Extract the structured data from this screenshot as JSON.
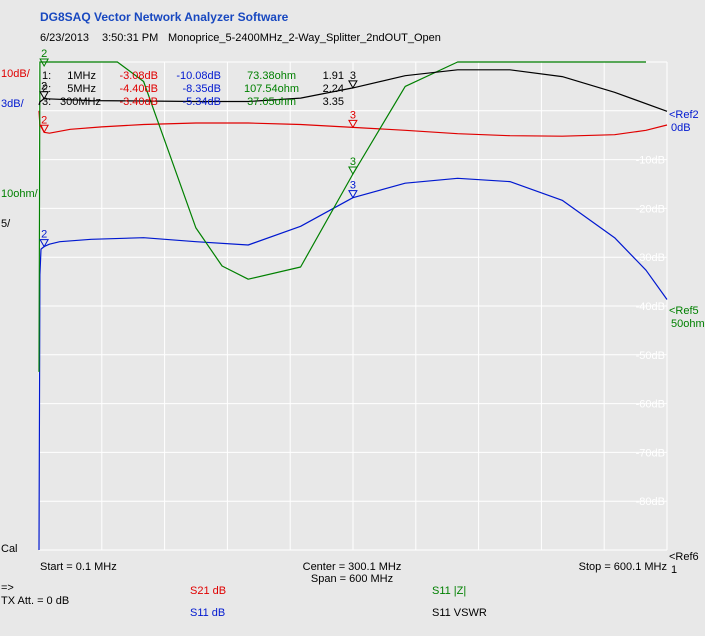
{
  "app": {
    "title": "DG8SAQ Vector Network Analyzer Software",
    "date": "6/23/2013",
    "time": "3:50:31 PM",
    "file": "Monoprice_5-2400MHz_2-Way_Splitter_2ndOUT_Open"
  },
  "colors": {
    "background": "#e8e8e8",
    "grid": "#ffffff",
    "title": "#1848c0",
    "s21": "#e00000",
    "s11_db": "#0018d0",
    "s11_z": "#008000",
    "s11_vswr": "#000000"
  },
  "scales": {
    "s21": "10dB/",
    "s11_db": "3dB/",
    "s11_z": "10ohm/",
    "s11_vswr": "5/"
  },
  "markers": [
    {
      "id": "1:",
      "freq": "1MHz",
      "s21": "-3.08dB",
      "s11": "-10.08dB",
      "z": "73.38ohm",
      "vswr": "1.91"
    },
    {
      "id": "2:",
      "freq": "5MHz",
      "s21": "-4.40dB",
      "s11": "-8.35dB",
      "z": "107.54ohm",
      "vswr": "2.24"
    },
    {
      "id": "3:",
      "freq": "300MHz",
      "s21": "-3.40dB",
      "s11": "-5.34dB",
      "z": "37.05ohm",
      "vswr": "3.35"
    }
  ],
  "right_labels": {
    "ref2": "<Ref2",
    "ref2_value": "0dB",
    "ref5": "<Ref5",
    "ref5_value": "50ohm",
    "ref6": "<Ref6",
    "ref6_num": "1"
  },
  "cal_label": "Cal",
  "footer": {
    "start": "Start = 0.1 MHz",
    "center": "Center = 300.1 MHz",
    "span": "Span = 600 MHz",
    "stop": "Stop = 600.1 MHz",
    "arrow": "=>",
    "tx_att": "TX Att.  = 0 dB"
  },
  "legend": {
    "s21": "S21  dB",
    "s11_db": "S11  dB",
    "s11_z": "S11  |Z|",
    "s11_vswr": "S11  VSWR"
  },
  "chart_data": {
    "type": "line",
    "x_axis": {
      "start_mhz": 0.1,
      "stop_mhz": 600.1,
      "center_mhz": 300.1,
      "span_mhz": 600,
      "divisions": 10
    },
    "y_axis": {
      "divisions": 10,
      "ref_division": 1,
      "tick_labels": [
        "-10dB",
        "-20dB",
        "-30dB",
        "-40dB",
        "-50dB",
        "-60dB",
        "-70dB",
        "-80dB"
      ]
    },
    "marker_freqs_mhz": [
      1,
      5,
      300
    ],
    "series": [
      {
        "key": "s21",
        "ref": 0,
        "per_div": 10,
        "x": [
          0.1,
          1,
          2,
          5,
          10,
          30,
          60,
          100,
          150,
          200,
          250,
          300,
          350,
          400,
          450,
          500,
          550,
          580,
          600.1
        ],
        "y": [
          0,
          -3.08,
          -3.0,
          -4.4,
          -4.6,
          -3.8,
          -3.3,
          -2.8,
          -2.5,
          -2.5,
          -2.8,
          -3.4,
          -4.0,
          -4.7,
          -5.1,
          -5.2,
          -4.9,
          -4.0,
          -2.9
        ]
      },
      {
        "key": "s11_db",
        "ref": 0,
        "per_div": 3,
        "x": [
          0.1,
          1,
          2,
          5,
          10,
          20,
          50,
          100,
          150,
          200,
          250,
          300,
          350,
          400,
          450,
          500,
          550,
          580,
          600.1
        ],
        "y": [
          -47,
          -10.08,
          -8.5,
          -8.35,
          -8.2,
          -8.05,
          -7.9,
          -7.8,
          -8.05,
          -8.25,
          -7.1,
          -5.34,
          -4.45,
          -4.15,
          -4.35,
          -5.5,
          -7.8,
          -9.8,
          -11.6
        ]
      },
      {
        "key": "s11_z",
        "ref": 50,
        "per_div": 10,
        "x": [
          0.1,
          1,
          5,
          30,
          50,
          75,
          100,
          150,
          175,
          200,
          250,
          300,
          350,
          400,
          450,
          500,
          520,
          540,
          560,
          580
        ],
        "y": [
          -3.5,
          73.38,
          107.54,
          114,
          100,
          76,
          56,
          26,
          18.2,
          15.5,
          18,
          37.05,
          55,
          71,
          95,
          122,
          140,
          160,
          180,
          200
        ]
      },
      {
        "key": "s11_vswr",
        "ref": 1,
        "per_div": 5,
        "x": [
          0.1,
          1,
          5,
          50,
          100,
          150,
          200,
          250,
          300,
          350,
          400,
          450,
          500,
          550,
          600.1
        ],
        "y": [
          1.6,
          1.91,
          2.24,
          2.05,
          2.0,
          1.95,
          1.95,
          2.3,
          3.35,
          4.6,
          5.2,
          5.2,
          4.5,
          2.9,
          0.95
        ]
      }
    ]
  }
}
